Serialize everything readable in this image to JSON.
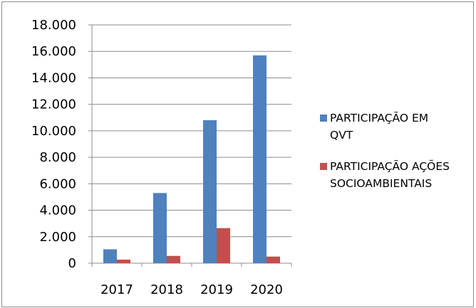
{
  "chart_data": {
    "type": "bar",
    "categories": [
      "2017",
      "2018",
      "2019",
      "2020"
    ],
    "series": [
      {
        "name": "PARTICIPAÇÃO EM QVT",
        "legend_lines": [
          "PARTICIPAÇÃO EM",
          "QVT"
        ],
        "color": "#4f81bd",
        "values": [
          1050,
          5300,
          10800,
          15700
        ]
      },
      {
        "name": "PARTICIPAÇÃO AÇÕES SOCIOAMBIENTAIS",
        "legend_lines": [
          "PARTICIPAÇÃO AÇÕES",
          "SOCIOAMBIENTAIS"
        ],
        "color": "#c0504d",
        "values": [
          270,
          550,
          2650,
          500
        ]
      }
    ],
    "ylim": [
      0,
      18000
    ],
    "yticks": [
      0,
      2000,
      4000,
      6000,
      8000,
      10000,
      12000,
      14000,
      16000,
      18000
    ],
    "ytick_labels": [
      "0",
      "2.000",
      "4.000",
      "6.000",
      "8.000",
      "10.000",
      "12.000",
      "14.000",
      "16.000",
      "18.000"
    ],
    "grid": true,
    "legend_position": "right",
    "title": "",
    "xlabel": "",
    "ylabel": ""
  }
}
